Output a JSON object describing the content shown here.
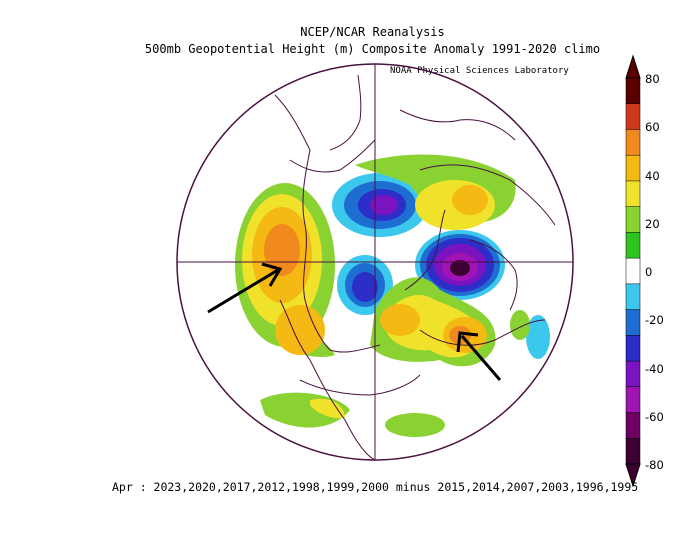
{
  "title": "NCEP/NCAR Reanalysis",
  "subtitle": "500mb Geopotential Height (m) Composite Anomaly 1991-2020 climo",
  "credit": "NOAA Physical Sciences Laboratory",
  "footer": "Apr : 2023,2020,2017,2012,1998,1999,2000 minus 2015,2014,2007,2003,1996,1995",
  "colorbar": {
    "labels": [
      "80",
      "60",
      "40",
      "20",
      "0",
      "-20",
      "-40",
      "-60",
      "-80"
    ],
    "colors": [
      "#5a0000",
      "#cc3a1a",
      "#f08a1e",
      "#f5b914",
      "#f0e22a",
      "#8ad232",
      "#2ec41e",
      "#ffffff",
      "#3cc8ec",
      "#1e6ed2",
      "#2d2dc8",
      "#7a14c0",
      "#a014b4",
      "#6e0064",
      "#3c0032"
    ]
  },
  "map": {
    "projection": "north-polar-stereographic",
    "annotations": [
      "arrow-west-north-america",
      "arrow-northeast-atlantic-europe"
    ],
    "anomaly_features": [
      {
        "region": "western North America / Canada",
        "sign": "positive",
        "max_m": 60
      },
      {
        "region": "Greenland / North Atlantic",
        "sign": "positive",
        "max_m": 60
      },
      {
        "region": "Siberia",
        "sign": "negative",
        "max_m": -60
      },
      {
        "region": "Barents / Northern Europe",
        "sign": "negative",
        "max_m": -80
      },
      {
        "region": "Arctic Ocean",
        "sign": "negative",
        "max_m": -40
      }
    ]
  }
}
